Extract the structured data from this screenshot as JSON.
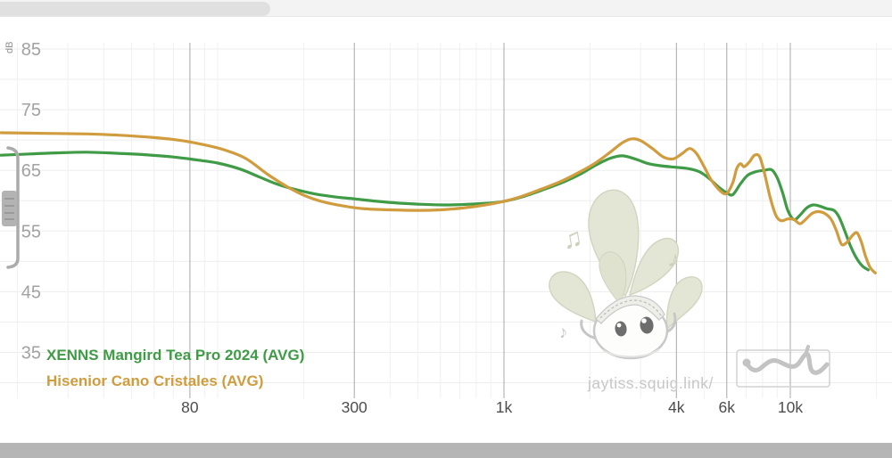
{
  "watermark": {
    "site_text": "jaytiss.squig.link/"
  },
  "colors": {
    "grid_minor": "#f0f0f0",
    "grid_major_x": "#a8a8a8",
    "grid_h": "#ededed",
    "x_label": "#4d4d4d",
    "y_label": "#a2a2a2",
    "unit_label": "#8d8d8d",
    "watermark_text": "#c7c7c7",
    "top_track": "#f3f3f3",
    "top_thumb": "#e0e0e0",
    "bottom_bar": "#b5b5b5"
  },
  "chart_data": {
    "type": "line",
    "title": "",
    "xlabel": "",
    "ylabel": "dB",
    "x_axis": {
      "scale": "log",
      "unit": "Hz",
      "min_hz": 17.5,
      "max_hz": 20000,
      "ticks": [
        {
          "hz": 80,
          "label": "80"
        },
        {
          "hz": 300,
          "label": "300"
        },
        {
          "hz": 1000,
          "label": "1k"
        },
        {
          "hz": 4000,
          "label": "4k"
        },
        {
          "hz": 6000,
          "label": "6k"
        },
        {
          "hz": 10000,
          "label": "10k"
        }
      ],
      "minor_gridlines_hz": [
        20,
        30,
        40,
        50,
        60,
        70,
        90,
        100,
        200,
        400,
        500,
        600,
        700,
        800,
        900,
        2000,
        3000,
        5000,
        7000,
        8000,
        9000,
        20000
      ]
    },
    "y_axis": {
      "unit_label": "dB",
      "tick_labels": [
        {
          "db": 85,
          "label": "85"
        },
        {
          "db": 75,
          "label": "75"
        },
        {
          "db": 65,
          "label": "65"
        },
        {
          "db": 55,
          "label": "55"
        },
        {
          "db": 45,
          "label": "45"
        },
        {
          "db": 35,
          "label": "35"
        }
      ],
      "gridline_db_values": [
        85,
        80,
        75,
        70,
        65,
        60,
        55,
        50,
        45,
        40,
        35,
        30
      ]
    },
    "legend_position": "bottom-left",
    "series": [
      {
        "label": "XENNS Mangird Tea Pro 2024 (AVG)",
        "color": "#3f9b45",
        "points": [
          [
            17.5,
            67.5
          ],
          [
            22,
            67.7
          ],
          [
            28,
            67.9
          ],
          [
            35,
            68.0
          ],
          [
            45,
            67.8
          ],
          [
            55,
            67.6
          ],
          [
            70,
            67.2
          ],
          [
            85,
            66.7
          ],
          [
            100,
            66.2
          ],
          [
            120,
            65.2
          ],
          [
            140,
            63.9
          ],
          [
            160,
            62.8
          ],
          [
            185,
            61.9
          ],
          [
            220,
            61.1
          ],
          [
            260,
            60.6
          ],
          [
            300,
            60.3
          ],
          [
            360,
            59.9
          ],
          [
            430,
            59.6
          ],
          [
            520,
            59.4
          ],
          [
            620,
            59.3
          ],
          [
            740,
            59.4
          ],
          [
            880,
            59.6
          ],
          [
            1000,
            59.9
          ],
          [
            1150,
            60.6
          ],
          [
            1350,
            61.7
          ],
          [
            1600,
            63.0
          ],
          [
            1850,
            64.4
          ],
          [
            2100,
            65.9
          ],
          [
            2350,
            67.0
          ],
          [
            2600,
            67.4
          ],
          [
            2900,
            66.8
          ],
          [
            3200,
            66.1
          ],
          [
            3600,
            65.7
          ],
          [
            4000,
            65.5
          ],
          [
            4400,
            65.3
          ],
          [
            4800,
            64.8
          ],
          [
            5200,
            63.7
          ],
          [
            5600,
            62.3
          ],
          [
            6000,
            61.3
          ],
          [
            6300,
            61.0
          ],
          [
            6700,
            62.8
          ],
          [
            7100,
            64.2
          ],
          [
            7600,
            64.8
          ],
          [
            8100,
            65.0
          ],
          [
            8600,
            65.1
          ],
          [
            9000,
            63.8
          ],
          [
            9400,
            61.3
          ],
          [
            9800,
            58.4
          ],
          [
            10300,
            56.9
          ],
          [
            10800,
            57.6
          ],
          [
            11400,
            58.8
          ],
          [
            12000,
            59.3
          ],
          [
            12700,
            59.1
          ],
          [
            13400,
            58.7
          ],
          [
            14200,
            58.4
          ],
          [
            14800,
            57.3
          ],
          [
            15500,
            55.0
          ],
          [
            16200,
            52.6
          ],
          [
            17000,
            50.6
          ],
          [
            17800,
            49.3
          ],
          [
            18700,
            48.6
          ]
        ]
      },
      {
        "label": "Hisenior Cano Cristales (AVG)",
        "color": "#d09c3e",
        "points": [
          [
            17.5,
            71.2
          ],
          [
            25,
            71.1
          ],
          [
            35,
            71.0
          ],
          [
            45,
            70.8
          ],
          [
            60,
            70.4
          ],
          [
            75,
            69.9
          ],
          [
            90,
            69.2
          ],
          [
            105,
            68.4
          ],
          [
            125,
            67.0
          ],
          [
            150,
            64.3
          ],
          [
            175,
            62.3
          ],
          [
            200,
            60.9
          ],
          [
            230,
            59.9
          ],
          [
            270,
            59.2
          ],
          [
            320,
            58.7
          ],
          [
            400,
            58.5
          ],
          [
            500,
            58.4
          ],
          [
            600,
            58.5
          ],
          [
            720,
            58.8
          ],
          [
            860,
            59.3
          ],
          [
            1000,
            59.9
          ],
          [
            1150,
            60.7
          ],
          [
            1350,
            61.9
          ],
          [
            1600,
            63.3
          ],
          [
            1850,
            64.8
          ],
          [
            2100,
            66.3
          ],
          [
            2350,
            68.0
          ],
          [
            2600,
            69.6
          ],
          [
            2800,
            70.2
          ],
          [
            3000,
            69.9
          ],
          [
            3300,
            68.6
          ],
          [
            3600,
            67.2
          ],
          [
            3900,
            66.9
          ],
          [
            4200,
            67.8
          ],
          [
            4450,
            68.6
          ],
          [
            4700,
            67.8
          ],
          [
            5000,
            65.6
          ],
          [
            5300,
            63.4
          ],
          [
            5700,
            61.6
          ],
          [
            6000,
            61.2
          ],
          [
            6300,
            63.0
          ],
          [
            6500,
            65.3
          ],
          [
            6700,
            66.1
          ],
          [
            6900,
            65.6
          ],
          [
            7200,
            66.4
          ],
          [
            7500,
            67.5
          ],
          [
            7800,
            67.3
          ],
          [
            8100,
            64.8
          ],
          [
            8500,
            60.6
          ],
          [
            8900,
            57.6
          ],
          [
            9300,
            56.7
          ],
          [
            9800,
            57.0
          ],
          [
            10300,
            56.9
          ],
          [
            10800,
            56.2
          ],
          [
            11300,
            56.9
          ],
          [
            11900,
            57.9
          ],
          [
            12500,
            58.2
          ],
          [
            13200,
            57.9
          ],
          [
            13900,
            56.9
          ],
          [
            14500,
            55.0
          ],
          [
            15100,
            52.8
          ],
          [
            15800,
            53.2
          ],
          [
            16500,
            54.3
          ],
          [
            17100,
            54.7
          ],
          [
            17700,
            53.2
          ],
          [
            18300,
            50.9
          ],
          [
            19000,
            49.0
          ],
          [
            19800,
            48.1
          ]
        ]
      }
    ]
  }
}
